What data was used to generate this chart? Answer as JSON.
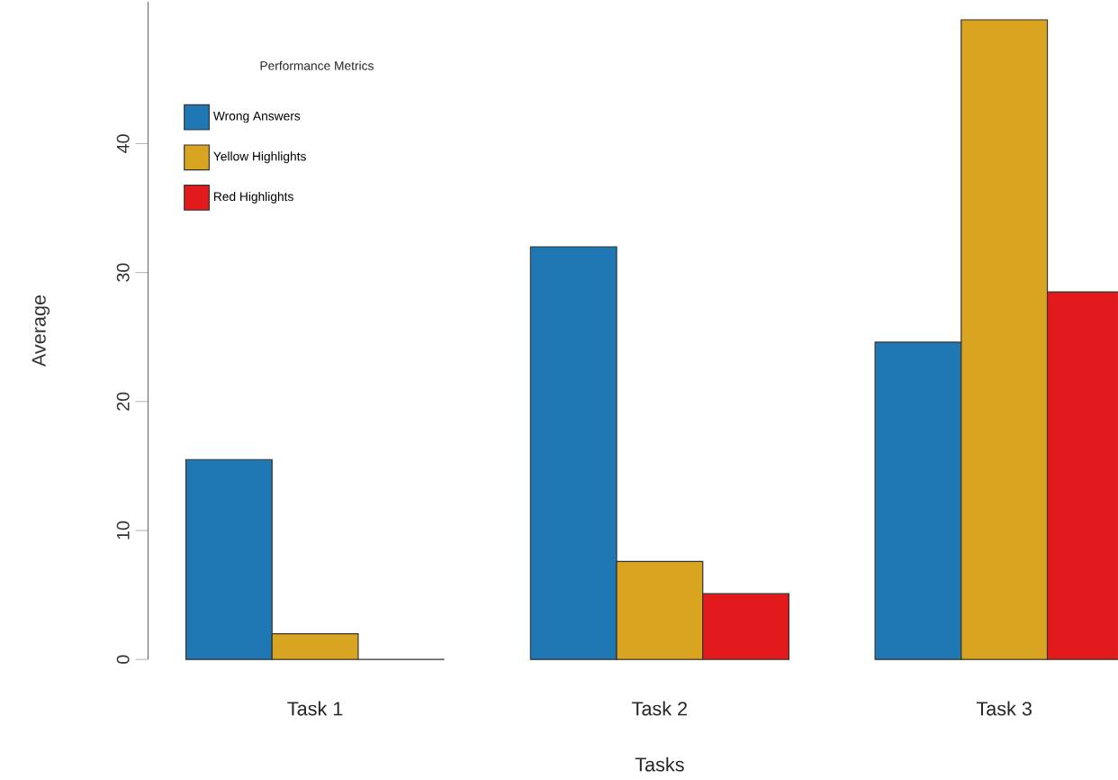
{
  "chart_data": {
    "type": "bar",
    "xlabel": "Tasks",
    "ylabel": "Average",
    "legend_title": "Performance Metrics",
    "legend": "top left",
    "categories": [
      "Task 1",
      "Task 2",
      "Task 3"
    ],
    "series": [
      {
        "name": "Wrong Answers",
        "color": "#1f78b4",
        "values": [
          15.5,
          32.0,
          24.6
        ]
      },
      {
        "name": "Yellow Highlights",
        "color": "#d9a521",
        "values": [
          2.0,
          7.6,
          49.6
        ]
      },
      {
        "name": "Red Highlights",
        "color": "#e31a1c",
        "values": [
          0,
          5.1,
          28.5
        ]
      }
    ],
    "ylim": [
      0,
      51
    ],
    "yticks": [
      0,
      10,
      20,
      30,
      40
    ],
    "grid": false
  }
}
